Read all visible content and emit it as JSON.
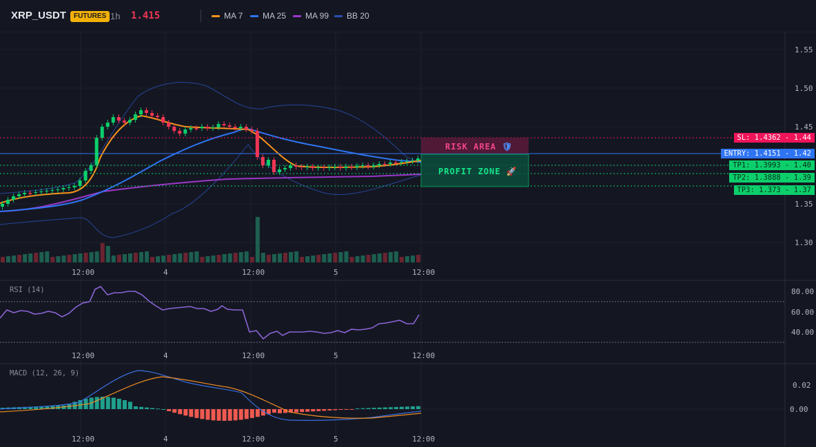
{
  "header": {
    "symbol": "XRP_USDT",
    "badge": "FUTURES",
    "timeframe": "1h",
    "last_price": "1.415",
    "legend": [
      {
        "label": "MA 7",
        "color": "#f7931a"
      },
      {
        "label": "MA 25",
        "color": "#2f74f2"
      },
      {
        "label": "MA 99",
        "color": "#9c37c8"
      },
      {
        "label": "BB 20",
        "color": "#2a4fb0"
      }
    ]
  },
  "price_axis": [
    "1.55",
    "1.50",
    "1.45",
    "1.40",
    "1.35",
    "1.30"
  ],
  "time_axis": [
    "12:00",
    "4",
    "12:00",
    "5",
    "12:00"
  ],
  "levels": {
    "sl": {
      "label": "SL: 1.4362",
      "axis": "1.44",
      "color": "#f0145a"
    },
    "entry": {
      "label": "ENTRY: 1.4151",
      "axis": "1.42",
      "color": "#2f74f2"
    },
    "tp1": {
      "label": "TP1: 1.3993",
      "axis": "1.40",
      "color": "#0ccf6b"
    },
    "tp2": {
      "label": "TP2: 1.3888",
      "axis": "1.39",
      "color": "#0ccf6b"
    },
    "tp3": {
      "label": "TP3: 1.373",
      "axis": "1.37",
      "color": "#0ccf6b"
    }
  },
  "zones": {
    "risk_label": "RISK AREA",
    "profit_label": "PROFIT ZONE",
    "risk_icon": "shield-icon",
    "profit_icon": "rocket-icon"
  },
  "rsi": {
    "title": "RSI (14)",
    "axis": [
      "80.00",
      "60.00",
      "40.00"
    ]
  },
  "macd": {
    "title": "MACD (12, 26, 9)",
    "axis": [
      "0.02",
      "0.00"
    ]
  }
}
